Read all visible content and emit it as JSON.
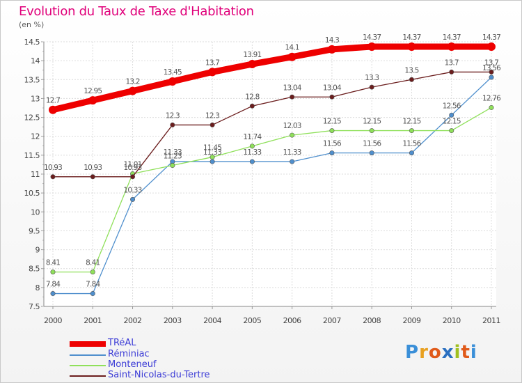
{
  "header": {
    "title": "Evolution du Taux de Taxe d'Habitation",
    "subtitle": "(en %)"
  },
  "chart_data": {
    "type": "line",
    "title": "Evolution du Taux de Taxe d'Habitation",
    "subtitle": "(en %)",
    "xlabel": "",
    "ylabel": "",
    "x": [
      "2000",
      "2001",
      "2002",
      "2003",
      "2004",
      "2005",
      "2006",
      "2007",
      "2008",
      "2009",
      "2010",
      "2011"
    ],
    "ylim": [
      7.5,
      14.5
    ],
    "yticks": [
      "7.5",
      "8",
      "8.5",
      "9",
      "9.5",
      "10",
      "10.5",
      "11",
      "11.5",
      "12",
      "12.5",
      "13",
      "13.5",
      "14",
      "14.5"
    ],
    "grid": true,
    "legend_position": "bottom-left",
    "series": [
      {
        "name": "TRéAL",
        "color": "#ee0000",
        "values": [
          12.7,
          12.95,
          13.2,
          13.45,
          13.7,
          13.91,
          14.1,
          14.3,
          14.37,
          14.37,
          14.37,
          14.37
        ],
        "labels": [
          "12.7",
          "12.95",
          "13.2",
          "13.45",
          "13.7",
          "13.91",
          "14.1",
          "14.3",
          "14.37",
          "14.37",
          "14.37",
          "14.37"
        ]
      },
      {
        "name": "Réminiac",
        "color": "#4f8fcd",
        "values": [
          7.84,
          7.84,
          10.33,
          11.33,
          11.33,
          11.33,
          11.33,
          11.56,
          11.56,
          11.56,
          12.56,
          13.56
        ],
        "labels": [
          "7.84",
          "7.84",
          "10.33",
          "11.33",
          "11.33",
          "11.33",
          "11.33",
          "11.56",
          "11.56",
          "11.56",
          "12.56",
          "13.56"
        ]
      },
      {
        "name": "Monteneuf",
        "color": "#8fe05a",
        "values": [
          8.41,
          8.41,
          11.01,
          11.23,
          11.45,
          11.74,
          12.03,
          12.15,
          12.15,
          12.15,
          12.15,
          12.76
        ],
        "labels": [
          "8.41",
          "8.41",
          "11.01",
          "11.23",
          "11.45",
          "11.74",
          "12.03",
          "12.15",
          "12.15",
          "12.15",
          "12.15",
          "12.76"
        ]
      },
      {
        "name": "Saint-Nicolas-du-Tertre",
        "color": "#6b1d1d",
        "values": [
          10.93,
          10.93,
          10.93,
          12.3,
          12.3,
          12.8,
          13.04,
          13.04,
          13.3,
          13.5,
          13.7,
          13.7
        ],
        "labels": [
          "10.93",
          "10.93",
          "10.93",
          "12.3",
          "12.3",
          "12.8",
          "13.04",
          "13.04",
          "13.3",
          "13.5",
          "13.7",
          "13.7"
        ]
      }
    ]
  },
  "logo": {
    "letters": [
      "P",
      "r",
      "o",
      "x",
      "i",
      "t",
      "i"
    ],
    "colors": [
      "#3a8fd8",
      "#e8a020",
      "#e05a1a",
      "#2a6fc0",
      "#a0c020",
      "#e05a1a",
      "#3a8fd8"
    ]
  }
}
